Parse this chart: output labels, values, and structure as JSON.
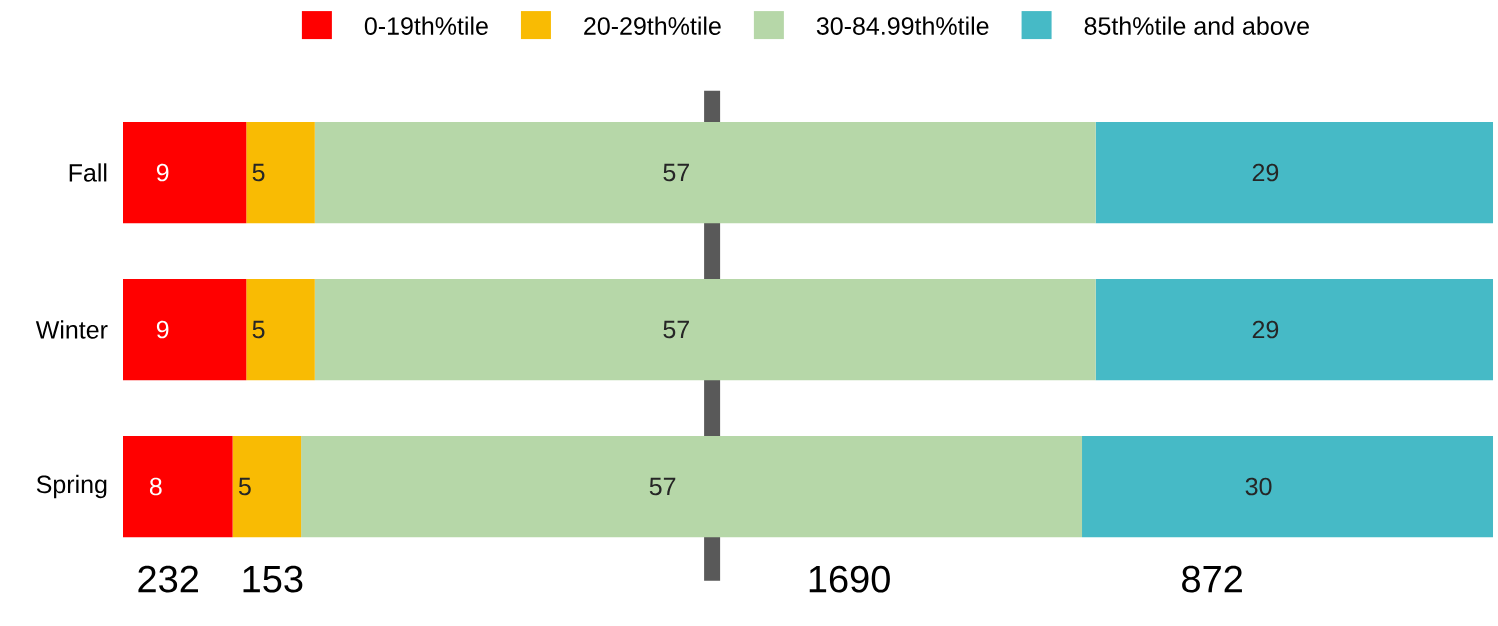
{
  "chart_data": {
    "type": "bar",
    "orientation": "horizontal",
    "stacked": true,
    "data_labels": true,
    "legend": "top",
    "categories": [
      "Fall",
      "Winter",
      "Spring"
    ],
    "series": [
      {
        "name": "0-19th%tile",
        "color": "#ff0000",
        "values": [
          9,
          9,
          8
        ]
      },
      {
        "name": "20-29th%tile",
        "color": "#f9bb03",
        "values": [
          5,
          5,
          5
        ]
      },
      {
        "name": "30-84.99th%tile",
        "color": "#b6d7a8",
        "values": [
          57,
          57,
          57
        ]
      },
      {
        "name": "85th%tile and above",
        "color": "#46bac6",
        "values": [
          29,
          29,
          30
        ]
      }
    ],
    "ref_lines": [
      {
        "axis": "x",
        "value": 43,
        "color": "#595959"
      }
    ],
    "annotations": [
      "232",
      "153",
      "1690",
      "872"
    ]
  }
}
